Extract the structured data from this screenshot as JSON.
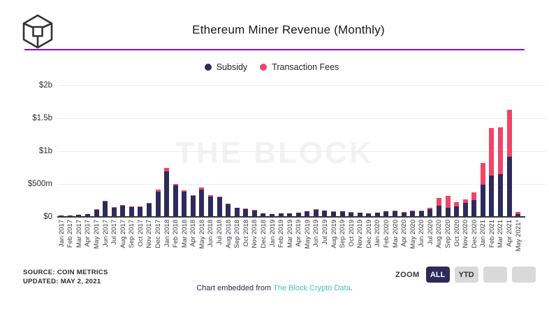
{
  "header": {
    "title": "Ethereum Miner Revenue (Monthly)"
  },
  "colors": {
    "accent_purple": "#9303dd",
    "subsidy_navy": "#2e2a5c",
    "fees_pink": "#ef4568",
    "link_teal": "#45c2c7"
  },
  "legend": [
    {
      "label": "Subsidy",
      "color": "#2e2a5c"
    },
    {
      "label": "Transaction Fees",
      "color": "#ef4568"
    }
  ],
  "chart_data": {
    "type": "bar",
    "stacked": true,
    "title": "Ethereum Miner Revenue (Monthly)",
    "unit": "USD millions",
    "xlabel": "",
    "ylabel": "",
    "ylim": [
      0,
      2000
    ],
    "y_ticks": [
      {
        "label": "$2b",
        "value": 2000
      },
      {
        "label": "$1.5b",
        "value": 1500
      },
      {
        "label": "$1b",
        "value": 1000
      },
      {
        "label": "$500m",
        "value": 500
      },
      {
        "label": "$0",
        "value": 0
      }
    ],
    "grid": true,
    "legend_position": "top",
    "watermark": "THE BLOCK",
    "categories": [
      "Jan 2017",
      "Feb 2017",
      "Mar 2017",
      "Apr 2017",
      "May 2017",
      "Jun 2017",
      "Jul 2017",
      "Aug 2017",
      "Sep 2017",
      "Oct 2017",
      "Nov 2017",
      "Dec 2017",
      "Jan 2018",
      "Feb 2018",
      "Mar 2018",
      "Apr 2018",
      "May 2018",
      "Jun 2018",
      "Jul 2018",
      "Aug 2018",
      "Sep 2018",
      "Oct 2018",
      "Nov 2018",
      "Dec 2018",
      "Jan 2019",
      "Feb 2019",
      "Mar 2019",
      "Apr 2019",
      "May 2019",
      "Jun 2019",
      "Jul 2019",
      "Aug 2019",
      "Sep 2019",
      "Oct 2019",
      "Nov 2019",
      "Dec 2019",
      "Jan 2020",
      "Feb 2020",
      "Mar 2020",
      "Apr 2020",
      "May 2020",
      "Jun 2020",
      "Jul 2020",
      "Aug 2020",
      "Sep 2020",
      "Oct 2020",
      "Nov 2020",
      "Dec 2020",
      "Jan 2021",
      "Feb 2021",
      "Mar 2021",
      "Apr 2021",
      "May 2021*"
    ],
    "series": [
      {
        "name": "Subsidy",
        "color": "#2e2a5c",
        "values": [
          16,
          16,
          30,
          40,
          109,
          232,
          142,
          171,
          152,
          152,
          203,
          386,
          693,
          477,
          386,
          316,
          417,
          313,
          294,
          193,
          135,
          122,
          98,
          52,
          40,
          53,
          53,
          62,
          82,
          109,
          92,
          76,
          80,
          69,
          59,
          53,
          62,
          84,
          87,
          67,
          85,
          85,
          115,
          167,
          143,
          160,
          216,
          258,
          491,
          631,
          652,
          915,
          42
        ]
      },
      {
        "name": "Transaction Fees",
        "color": "#ef4568",
        "values": [
          1,
          1,
          1,
          2,
          6,
          12,
          8,
          10,
          8,
          5,
          6,
          25,
          55,
          28,
          18,
          15,
          25,
          18,
          16,
          12,
          8,
          7,
          6,
          4,
          2,
          3,
          3,
          4,
          5,
          6,
          5,
          4,
          4,
          4,
          4,
          3,
          4,
          6,
          10,
          6,
          12,
          15,
          28,
          121,
          177,
          59,
          52,
          111,
          331,
          720,
          706,
          714,
          33
        ]
      }
    ]
  },
  "footer": {
    "source_line1": "SOURCE: COIN METRICS",
    "source_line2": "UPDATED: MAY 2, 2021",
    "embed_prefix": "Chart embedded from ",
    "embed_link": "The Block Crypto Data",
    "embed_suffix": "."
  },
  "zoom_controls": {
    "label": "ZOOM",
    "buttons": [
      {
        "label": "ALL",
        "active": true
      },
      {
        "label": "YTD",
        "active": false
      },
      {
        "label": "",
        "active": false
      },
      {
        "label": "",
        "active": false
      }
    ]
  }
}
